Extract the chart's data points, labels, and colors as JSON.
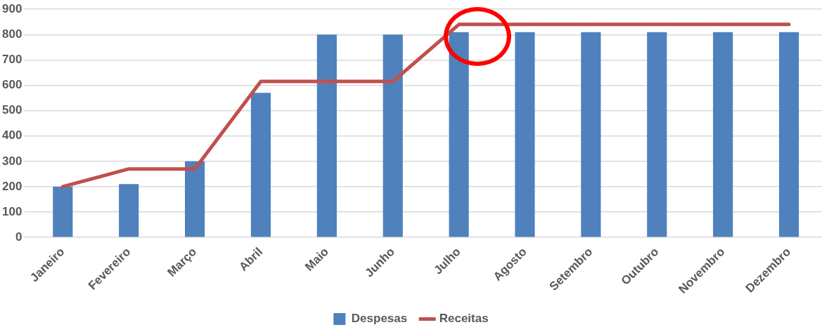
{
  "chart_data": {
    "type": "bar",
    "categories": [
      "Janeiro",
      "Fevereiro",
      "Março",
      "Abril",
      "Maio",
      "Junho",
      "Julho",
      "Agosto",
      "Setembro",
      "Outubro",
      "Novembro",
      "Dezembro"
    ],
    "series": [
      {
        "name": "Despesas",
        "color": "#4f81bd",
        "values": [
          200,
          210,
          300,
          570,
          800,
          800,
          810,
          810,
          810,
          810,
          810,
          810
        ]
      },
      {
        "name": "Receitas",
        "type": "line",
        "color": "#c0504d",
        "values": [
          200,
          270,
          270,
          615,
          615,
          615,
          840,
          840,
          840,
          840,
          840,
          840
        ]
      }
    ],
    "ylim": [
      0,
      900
    ],
    "yticks": [
      0,
      100,
      200,
      300,
      400,
      500,
      600,
      700,
      800,
      900
    ],
    "grid": "y",
    "legend": "bottom",
    "marker": "none",
    "line_style": "solid"
  }
}
